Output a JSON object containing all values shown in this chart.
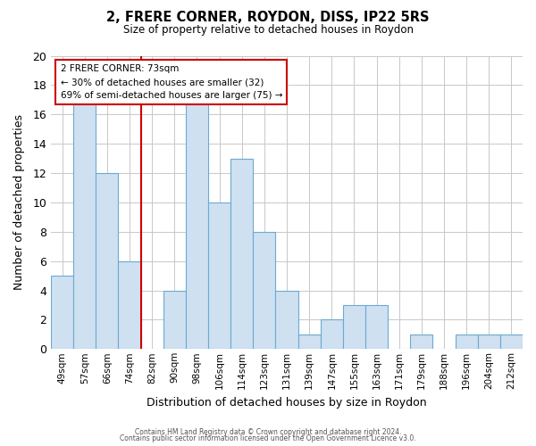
{
  "title": "2, FRERE CORNER, ROYDON, DISS, IP22 5RS",
  "subtitle": "Size of property relative to detached houses in Roydon",
  "xlabel": "Distribution of detached houses by size in Roydon",
  "ylabel": "Number of detached properties",
  "bar_labels": [
    "49sqm",
    "57sqm",
    "66sqm",
    "74sqm",
    "82sqm",
    "90sqm",
    "98sqm",
    "106sqm",
    "114sqm",
    "123sqm",
    "131sqm",
    "139sqm",
    "147sqm",
    "155sqm",
    "163sqm",
    "171sqm",
    "179sqm",
    "188sqm",
    "196sqm",
    "204sqm",
    "212sqm"
  ],
  "bar_values": [
    5,
    17,
    12,
    6,
    0,
    4,
    17,
    10,
    13,
    8,
    4,
    1,
    2,
    3,
    3,
    0,
    1,
    0,
    1,
    1,
    1
  ],
  "bar_color": "#cfe0f0",
  "bar_edge_color": "#6aaad4",
  "vline_x_bar_idx": 3,
  "vline_color": "#cc0000",
  "annotation_title": "2 FRERE CORNER: 73sqm",
  "annotation_line1": "← 30% of detached houses are smaller (32)",
  "annotation_line2": "69% of semi-detached houses are larger (75) →",
  "annotation_box_color": "#ffffff",
  "annotation_box_edge": "#cc0000",
  "ylim": [
    0,
    20
  ],
  "yticks": [
    0,
    2,
    4,
    6,
    8,
    10,
    12,
    14,
    16,
    18,
    20
  ],
  "footer1": "Contains HM Land Registry data © Crown copyright and database right 2024.",
  "footer2": "Contains public sector information licensed under the Open Government Licence v3.0.",
  "background_color": "#ffffff",
  "grid_color": "#c8c8c8"
}
